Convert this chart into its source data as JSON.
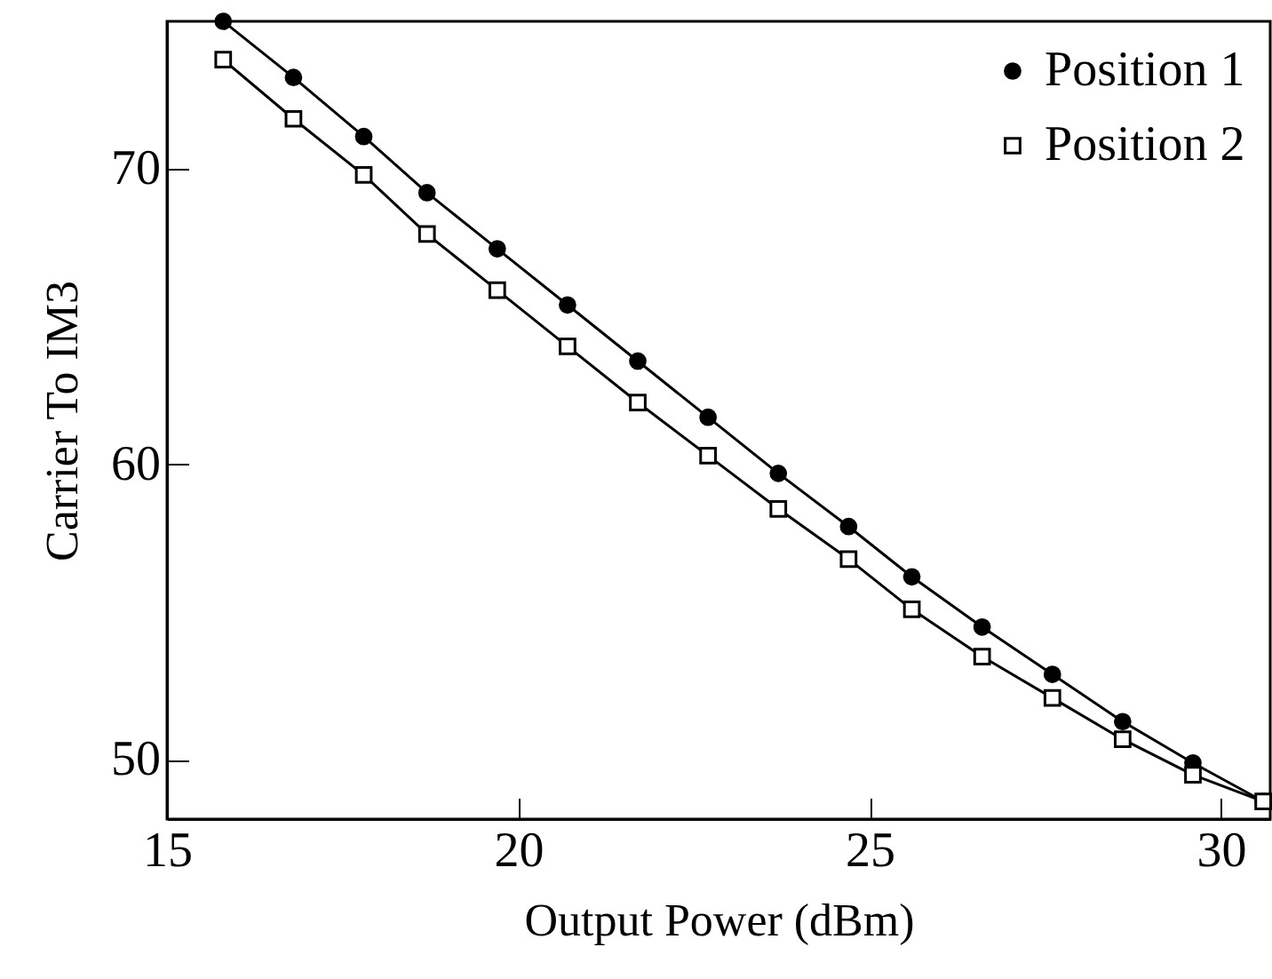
{
  "chart_data": {
    "type": "line",
    "xlabel": "Output Power (dBm)",
    "ylabel": "Carrier To IM3",
    "x": [
      15.8,
      16.8,
      17.8,
      18.7,
      19.7,
      20.7,
      21.7,
      22.7,
      23.7,
      24.7,
      25.6,
      26.6,
      27.6,
      28.6,
      29.6,
      30.6
    ],
    "series": [
      {
        "name": "Position 1",
        "color": "#000000",
        "marker": "circle",
        "values": [
          75.0,
          73.1,
          71.1,
          69.2,
          67.3,
          65.4,
          63.5,
          61.6,
          59.7,
          57.9,
          56.2,
          54.5,
          52.9,
          51.3,
          49.9,
          48.6
        ]
      },
      {
        "name": "Position 2",
        "color": "#000000",
        "marker": "square",
        "values": [
          73.7,
          71.7,
          69.8,
          67.8,
          65.9,
          64.0,
          62.1,
          60.3,
          58.5,
          56.8,
          55.1,
          53.5,
          52.1,
          50.7,
          49.5,
          48.6
        ]
      }
    ],
    "xlim": [
      15,
      30.7
    ],
    "xticks": [
      15,
      20,
      25,
      30
    ],
    "ylim": [
      48,
      75
    ],
    "yticks": [
      50,
      60,
      70
    ],
    "legend": "top right",
    "grid": false,
    "line_style": "solid"
  }
}
